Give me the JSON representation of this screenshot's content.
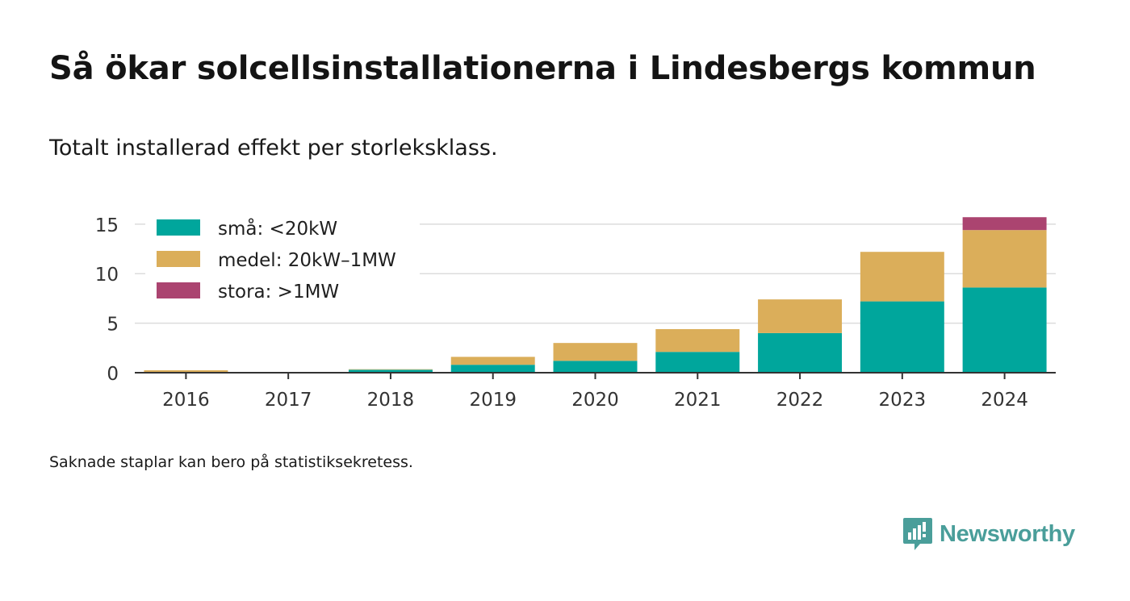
{
  "title": "Så ökar solcellsinstallationerna i Lindesbergs kommun",
  "subtitle": "Totalt installerad effekt per storleksklass.",
  "footnote": "Saknade staplar kan bero på statistiksekretess.",
  "brand": {
    "name": "Newsworthy",
    "icon": "newsworthy-logo-icon",
    "color": "#4a9e9a"
  },
  "chart_data": {
    "type": "bar",
    "stacked": true,
    "categories": [
      "2016",
      "2017",
      "2018",
      "2019",
      "2020",
      "2021",
      "2022",
      "2023",
      "2024"
    ],
    "series": [
      {
        "name": "små: <20kW",
        "color": "#00a69c",
        "values": [
          0.05,
          0,
          0.3,
          0.8,
          1.2,
          2.1,
          4.0,
          7.2,
          8.6
        ]
      },
      {
        "name": "medel: 20kW–1MW",
        "color": "#dbae5a",
        "values": [
          0.2,
          0,
          0.05,
          0.8,
          1.8,
          2.3,
          3.4,
          5.0,
          5.8
        ]
      },
      {
        "name": "stora: >1MW",
        "color": "#ab4470",
        "values": [
          0,
          0,
          0,
          0,
          0,
          0,
          0,
          0,
          1.3
        ]
      }
    ],
    "y_ticks": [
      "0",
      "5",
      "10",
      "15"
    ],
    "ylim": [
      0,
      15.8
    ],
    "grid": true,
    "legend_position": "top-left",
    "xlabel": "",
    "ylabel": ""
  }
}
